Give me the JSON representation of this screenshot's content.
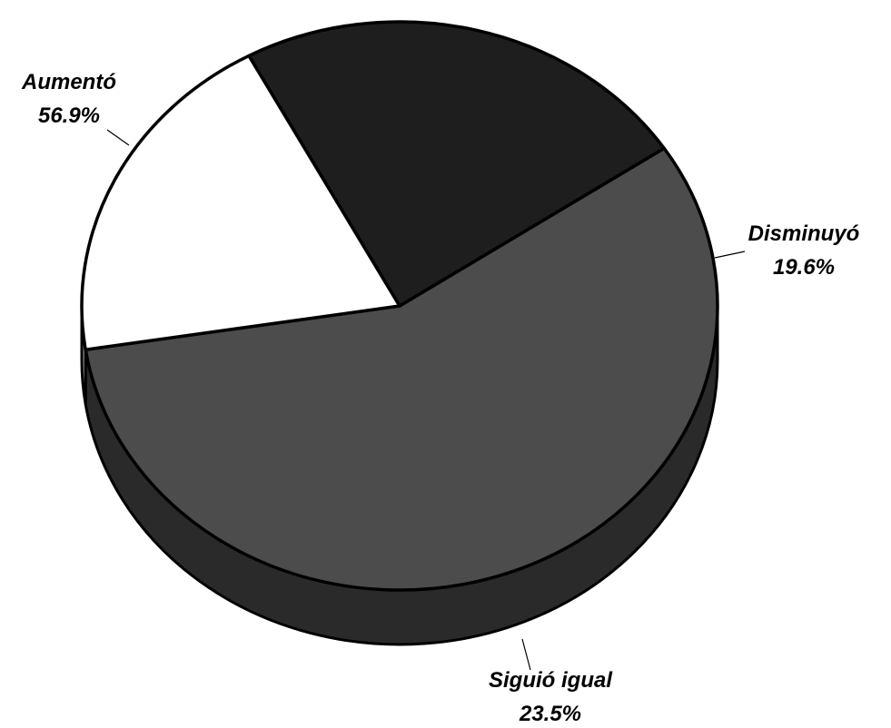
{
  "chart_data": {
    "type": "pie",
    "style": "3d",
    "title": "",
    "slices": [
      {
        "label": "Aumentó",
        "value": 56.9,
        "value_text": "56.9%",
        "color": "#4c4c4c",
        "side_color": "#2a2a2a"
      },
      {
        "label": "Disminuyó",
        "value": 19.6,
        "value_text": "19.6%",
        "color": "#ffffff",
        "side_color": "#9a9a9a"
      },
      {
        "label": "Siguió igual",
        "value": 23.5,
        "value_text": "23.5%",
        "color": "#1e1e1e",
        "side_color": "#0e0e0e"
      }
    ],
    "legend": "none",
    "outline_color": "#000000"
  }
}
